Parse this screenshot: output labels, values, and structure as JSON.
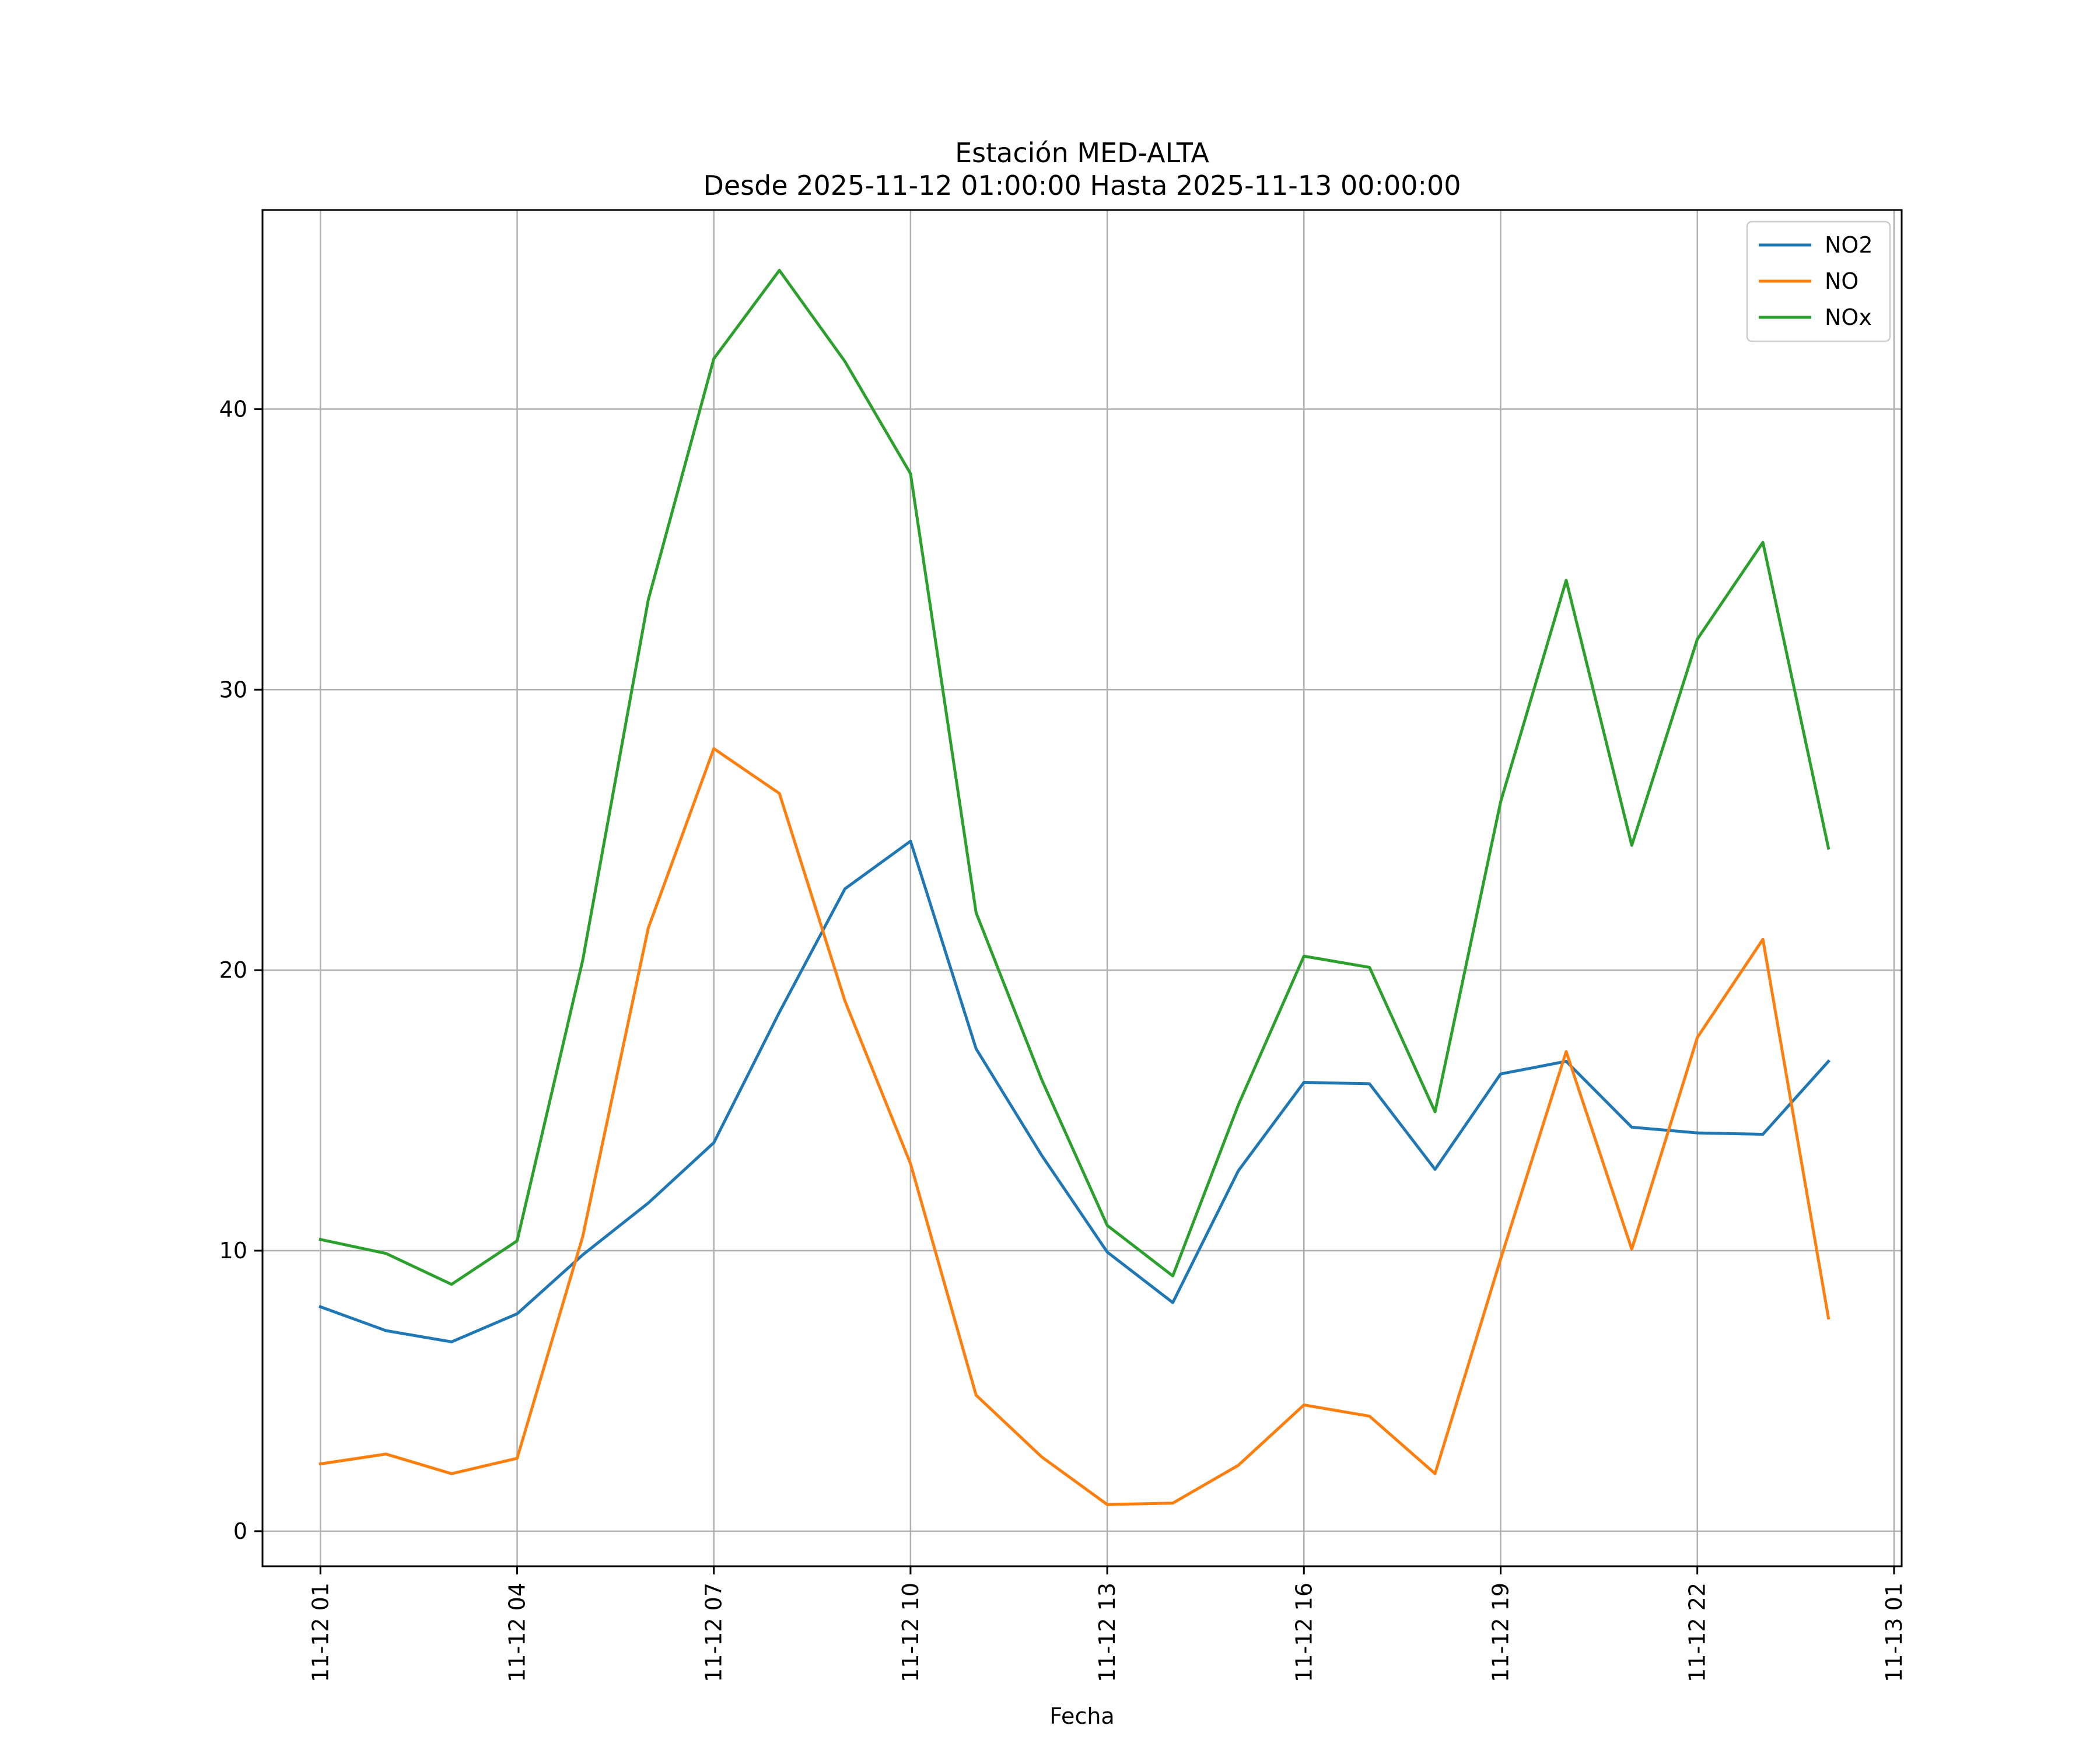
{
  "chart_data": {
    "type": "line",
    "title": "Estación MED-ALTA",
    "subtitle": "Desde 2025-11-12 01:00:00 Hasta 2025-11-13 00:00:00",
    "xlabel": "Fecha",
    "ylabel": "",
    "x": [
      "2025-11-12 01:00",
      "2025-11-12 02:00",
      "2025-11-12 03:00",
      "2025-11-12 04:00",
      "2025-11-12 05:00",
      "2025-11-12 06:00",
      "2025-11-12 07:00",
      "2025-11-12 08:00",
      "2025-11-12 09:00",
      "2025-11-12 10:00",
      "2025-11-12 11:00",
      "2025-11-12 12:00",
      "2025-11-12 13:00",
      "2025-11-12 14:00",
      "2025-11-12 15:00",
      "2025-11-12 16:00",
      "2025-11-12 17:00",
      "2025-11-12 18:00",
      "2025-11-12 19:00",
      "2025-11-12 20:00",
      "2025-11-12 21:00",
      "2025-11-12 22:00",
      "2025-11-12 23:00",
      "2025-11-13 00:00"
    ],
    "x_ticks": [
      "11-12 01",
      "11-12 04",
      "11-12 07",
      "11-12 10",
      "11-12 13",
      "11-12 16",
      "11-12 19",
      "11-12 22",
      "11-13 01"
    ],
    "y_ticks": [
      0,
      10,
      20,
      30,
      40
    ],
    "ylim": [
      -1.25,
      47.1
    ],
    "xlim": [
      "2025-11-12 00:07",
      "2025-11-13 01:07"
    ],
    "grid": true,
    "legend_position": "top-right",
    "series": [
      {
        "name": "NO2",
        "color": "#1f77b4",
        "values": [
          8.0,
          7.15,
          6.75,
          7.75,
          9.85,
          11.7,
          13.85,
          18.5,
          22.9,
          24.6,
          17.2,
          13.4,
          9.95,
          8.15,
          12.85,
          16.0,
          15.95,
          12.9,
          16.3,
          16.75,
          14.4,
          14.2,
          14.15,
          16.75
        ]
      },
      {
        "name": "NO",
        "color": "#ff7f0e",
        "values": [
          2.4,
          2.75,
          2.05,
          2.6,
          10.5,
          21.5,
          27.9,
          26.3,
          18.9,
          13.1,
          4.85,
          2.65,
          0.95,
          1.0,
          2.35,
          4.5,
          4.1,
          2.05,
          9.7,
          17.1,
          10.05,
          17.6,
          21.1,
          7.6
        ]
      },
      {
        "name": "NOx",
        "color": "#2ca02c",
        "values": [
          10.4,
          9.9,
          8.8,
          10.35,
          20.35,
          33.2,
          41.8,
          44.95,
          41.7,
          37.7,
          22.05,
          16.1,
          10.9,
          9.1,
          15.2,
          20.5,
          20.1,
          14.95,
          26.0,
          33.9,
          24.45,
          31.8,
          35.25,
          24.35
        ]
      }
    ]
  }
}
